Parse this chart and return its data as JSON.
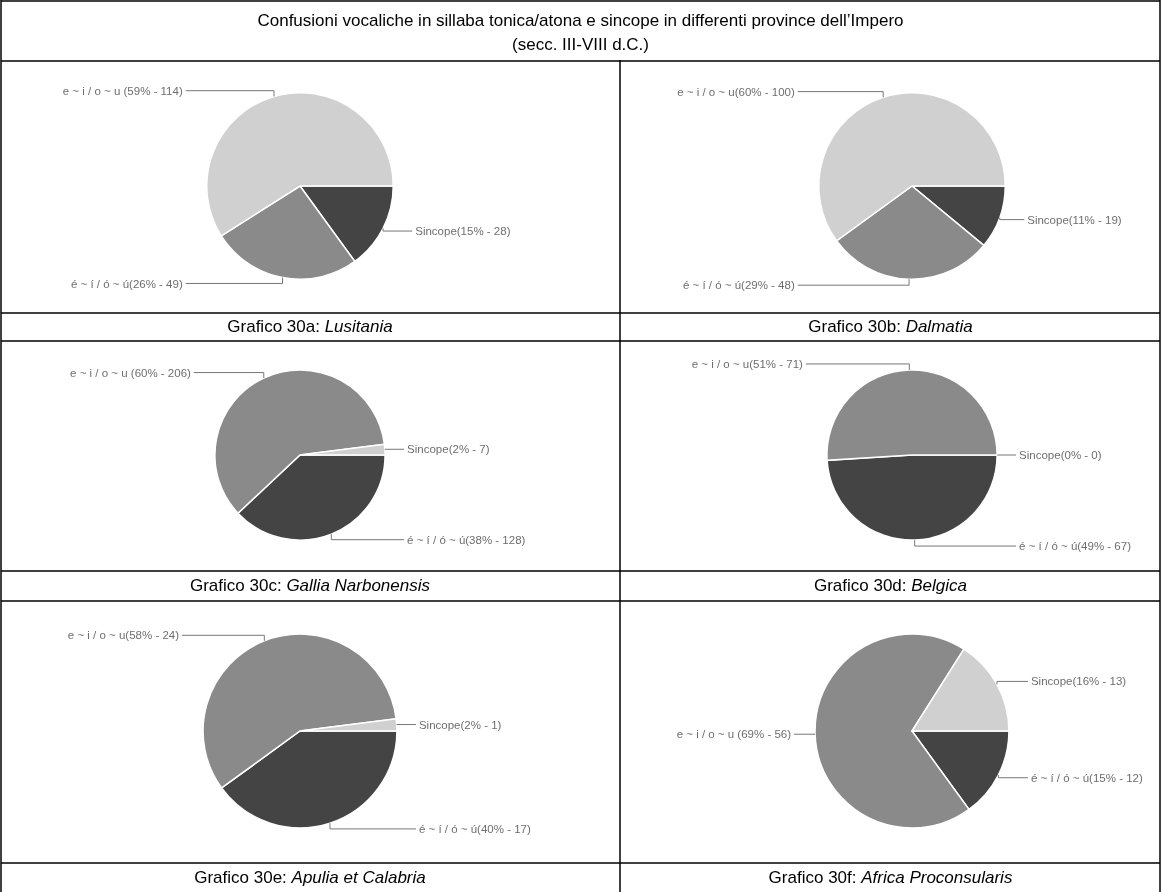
{
  "chart_data": [
    {
      "type": "other",
      "title": "Confusioni vocaliche in sillaba tonica/atona e sincope in differenti province dell’Impero",
      "subtitle": "(secc. III-VIII d.C.)"
    },
    {
      "type": "pie",
      "title": "Grafico 30a:",
      "subtitle": "Lusitania",
      "categories": [
        "Sincope(15% - 28)",
        "é ~ í / ó ~ ú(26% - 49)",
        "e ~ i / o ~ u (59% - 114)"
      ],
      "values": [
        15,
        26,
        59
      ],
      "colors": [
        "#444444",
        "#8a8a8a",
        "#d0d0d0"
      ]
    },
    {
      "type": "pie",
      "title": "Grafico 30b:",
      "subtitle": "Dalmatia",
      "categories": [
        "Sincope(11% - 19)",
        "é ~ í / ó ~ ú(29% - 48)",
        "e ~ i / o ~ u(60% - 100)"
      ],
      "values": [
        11,
        29,
        60
      ],
      "colors": [
        "#444444",
        "#8a8a8a",
        "#d0d0d0"
      ]
    },
    {
      "type": "pie",
      "title": "Grafico 30c:",
      "subtitle": "Gallia Narbonensis",
      "categories": [
        "é ~ í / ó ~ ú(38% - 128)",
        "e ~ i / o ~ u (60% - 206)",
        "Sincope(2% - 7)"
      ],
      "values": [
        38,
        60,
        2
      ],
      "colors": [
        "#444444",
        "#8a8a8a",
        "#d0d0d0"
      ]
    },
    {
      "type": "pie",
      "title": "Grafico 30d:",
      "subtitle": "Belgica",
      "categories": [
        "Sincope(0% - 0)",
        "é ~ í / ó ~ ú(49% - 67)",
        "e ~ i / o ~ u(51% - 71)"
      ],
      "values": [
        0,
        49,
        51
      ],
      "colors": [
        "#d0d0d0",
        "#444444",
        "#8a8a8a"
      ]
    },
    {
      "type": "pie",
      "title": "Grafico 30e:",
      "subtitle": "Apulia et Calabria",
      "categories": [
        "é ~ í / ó ~ ú(40% - 17)",
        "e ~ i / o ~ u(58% - 24)",
        "Sincope(2% - 1)"
      ],
      "values": [
        40,
        58,
        2
      ],
      "colors": [
        "#444444",
        "#8a8a8a",
        "#d0d0d0"
      ]
    },
    {
      "type": "pie",
      "title": "Grafico 30f:",
      "subtitle": "Africa Proconsularis",
      "categories": [
        "é ~ í / ó ~ ú(15% - 12)",
        "e ~ i / o ~ u (69% - 56)",
        "Sincope(16% - 13)"
      ],
      "values": [
        15,
        69,
        16
      ],
      "colors": [
        "#444444",
        "#8a8a8a",
        "#d0d0d0"
      ]
    }
  ]
}
